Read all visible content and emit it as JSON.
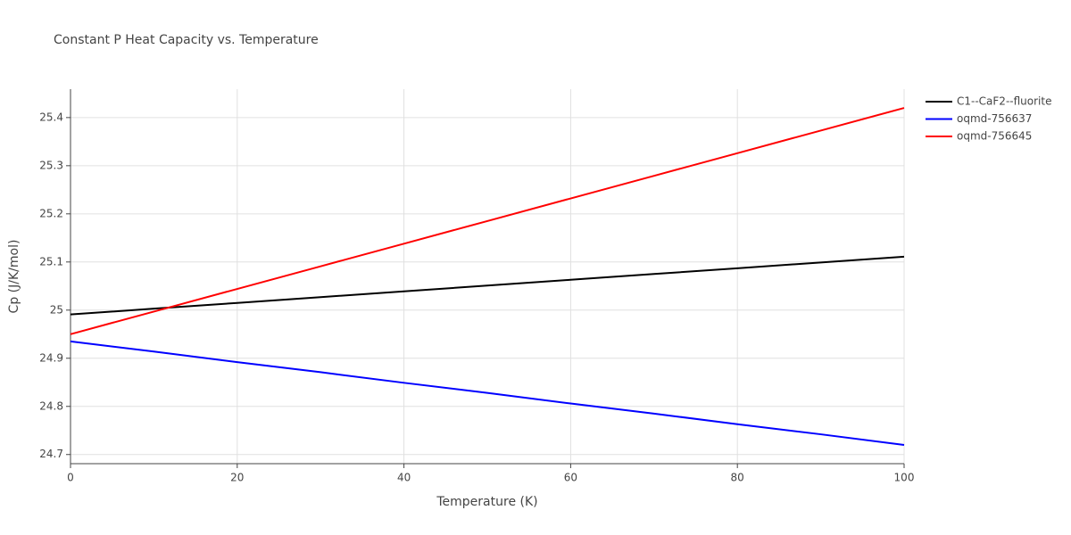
{
  "chart_data": {
    "type": "line",
    "title": "Constant P Heat Capacity vs. Temperature",
    "x_label": "Temperature (K)",
    "y_label": "Cp (J/K/mol)",
    "x": [
      0,
      10,
      20,
      30,
      40,
      50,
      60,
      70,
      80,
      90,
      100
    ],
    "series": [
      {
        "name": "C1--CaF2--fluorite",
        "color": "#000000",
        "values": [
          24.991,
          25.003,
          25.015,
          25.027,
          25.039,
          25.051,
          25.063,
          25.075,
          25.087,
          25.099,
          25.111
        ]
      },
      {
        "name": "oqmd-756637",
        "color": "#0000ff",
        "values": [
          24.935,
          24.914,
          24.892,
          24.871,
          24.849,
          24.828,
          24.806,
          24.785,
          24.763,
          24.742,
          24.72
        ]
      },
      {
        "name": "oqmd-756645",
        "color": "#ff0000",
        "values": [
          24.95,
          24.997,
          25.044,
          25.091,
          25.138,
          25.185,
          25.232,
          25.279,
          25.326,
          25.373,
          25.42
        ]
      }
    ],
    "xlim": [
      0,
      100
    ],
    "xticks": [
      0,
      20,
      40,
      60,
      80,
      100
    ],
    "ylim": [
      24.681,
      25.459
    ],
    "yticks": [
      24.7,
      24.8,
      24.9,
      25,
      25.1,
      25.2,
      25.3,
      25.4
    ],
    "grid": true,
    "legend": "outside-right"
  }
}
